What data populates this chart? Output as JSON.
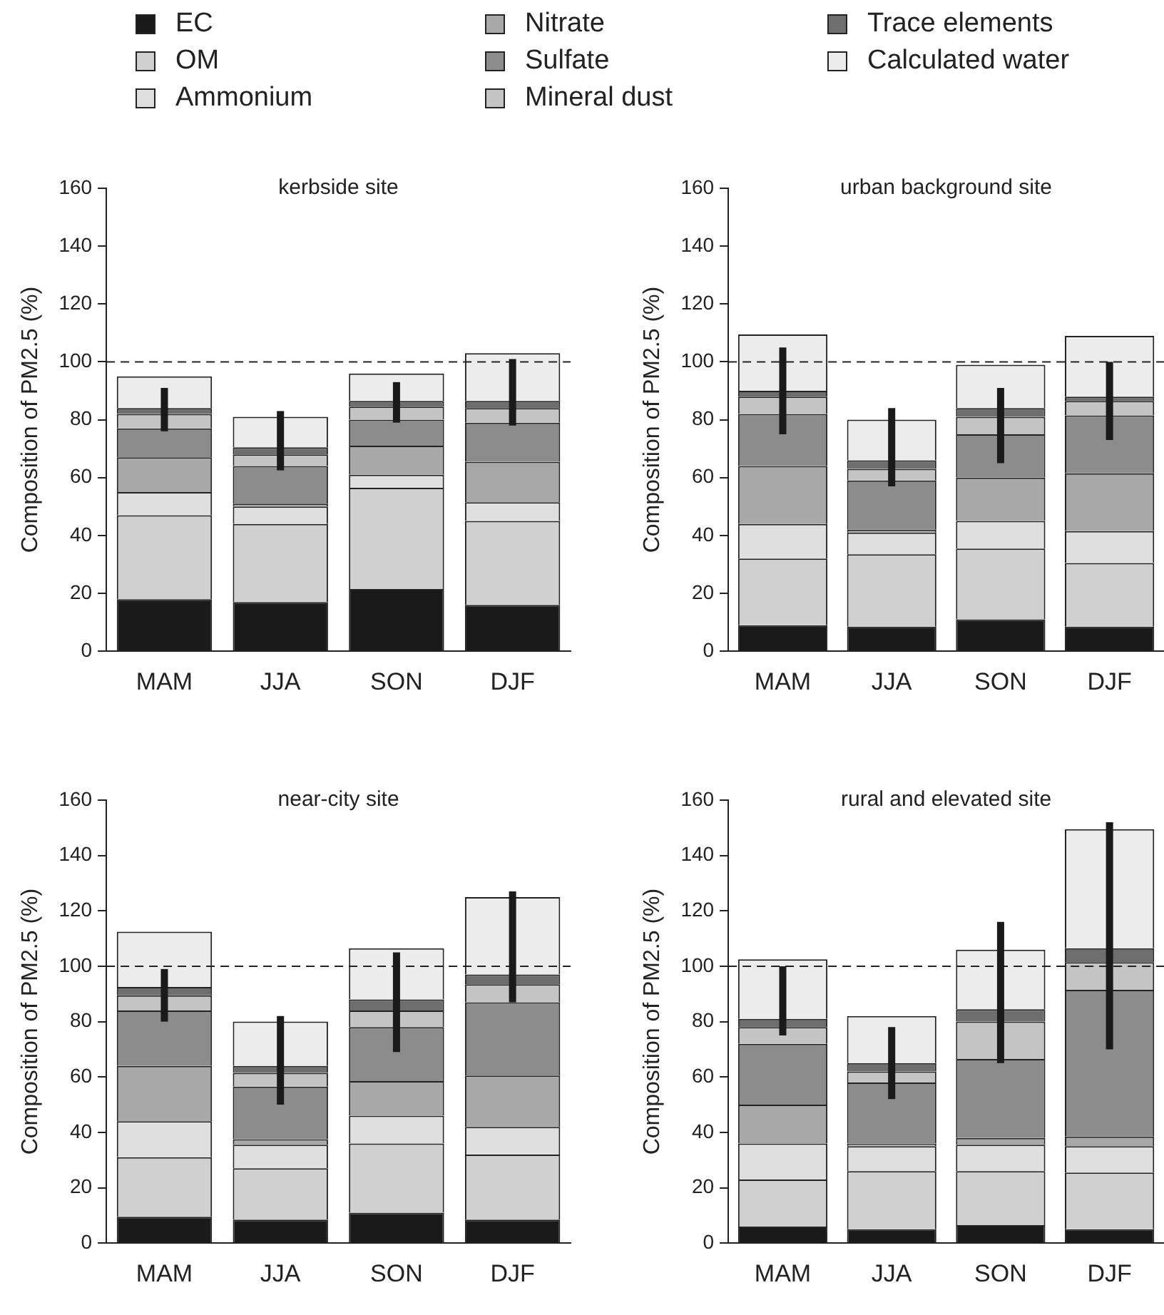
{
  "chart_data": [
    {
      "type": "bar",
      "stacked": true,
      "title": "kerbside site",
      "ylabel": "Composition of PM2.5 (%)",
      "categories": [
        "MAM",
        "JJA",
        "SON",
        "DJF"
      ],
      "ylim": [
        0,
        160
      ],
      "yticks": [
        0,
        20,
        40,
        60,
        80,
        100,
        120,
        140,
        160
      ],
      "legend": "top",
      "ref_lines": [
        {
          "axis": "y",
          "value": 100,
          "line_style": "dashed"
        }
      ],
      "series": [
        {
          "name": "EC",
          "color": "#1a1a1a",
          "values": [
            18,
            17,
            21.5,
            16
          ]
        },
        {
          "name": "OM",
          "color": "#d0d0d0",
          "values": [
            29,
            27,
            35,
            29
          ]
        },
        {
          "name": "Ammonium",
          "color": "#dfdfdf",
          "values": [
            8,
            6,
            4.5,
            6.5
          ]
        },
        {
          "name": "Nitrate",
          "color": "#a8a8a8",
          "values": [
            12,
            1,
            10,
            14
          ]
        },
        {
          "name": "Sulfate",
          "color": "#8c8c8c",
          "values": [
            10,
            13,
            9,
            13.5
          ]
        },
        {
          "name": "Mineral dust",
          "color": "#c4c4c4",
          "values": [
            5,
            4,
            4.5,
            5
          ]
        },
        {
          "name": "Trace elements",
          "color": "#6e6e6e",
          "values": [
            2,
            2.5,
            2,
            2.5
          ],
          "errors": [
            [
              76,
              91
            ],
            [
              62.5,
              83
            ],
            [
              79,
              93
            ],
            [
              78,
              101
            ]
          ]
        },
        {
          "name": "Calculated water",
          "color": "#ececec",
          "values": [
            11,
            10.5,
            9.5,
            16.5
          ]
        }
      ]
    },
    {
      "type": "bar",
      "stacked": true,
      "title": "urban background site",
      "ylabel": "Composition of PM2.5 (%)",
      "categories": [
        "MAM",
        "JJA",
        "SON",
        "DJF"
      ],
      "legend": "top",
      "ylim": [
        0,
        160
      ],
      "yticks": [
        0,
        20,
        40,
        60,
        80,
        100,
        120,
        140,
        160
      ],
      "ref_lines": [
        {
          "axis": "y",
          "value": 100,
          "line_style": "dashed"
        }
      ],
      "series": [
        {
          "name": "EC",
          "color": "#1a1a1a",
          "values": [
            9,
            8.5,
            11,
            8.5
          ]
        },
        {
          "name": "OM",
          "color": "#d0d0d0",
          "values": [
            23,
            25,
            24.5,
            22
          ]
        },
        {
          "name": "Ammonium",
          "color": "#dfdfdf",
          "values": [
            12,
            7.5,
            9.5,
            11
          ]
        },
        {
          "name": "Nitrate",
          "color": "#a8a8a8",
          "values": [
            20,
            1,
            15,
            20
          ]
        },
        {
          "name": "Sulfate",
          "color": "#8c8c8c",
          "values": [
            18,
            17,
            15,
            20
          ]
        },
        {
          "name": "Mineral dust",
          "color": "#c4c4c4",
          "values": [
            6,
            4,
            6,
            5
          ]
        },
        {
          "name": "Trace elements",
          "color": "#6e6e6e",
          "values": [
            2,
            3,
            3,
            1.5
          ],
          "errors": [
            [
              75,
              105
            ],
            [
              57,
              84
            ],
            [
              65,
              91
            ],
            [
              73,
              100
            ]
          ]
        },
        {
          "name": "Calculated water",
          "color": "#ececec",
          "values": [
            19.5,
            14,
            15,
            21
          ]
        }
      ]
    },
    {
      "type": "bar",
      "stacked": true,
      "title": "near-city site",
      "ylabel": "Composition of PM2.5 (%)",
      "categories": [
        "MAM",
        "JJA",
        "SON",
        "DJF"
      ],
      "legend": "top",
      "ylim": [
        0,
        160
      ],
      "yticks": [
        0,
        20,
        40,
        60,
        80,
        100,
        120,
        140,
        160
      ],
      "ref_lines": [
        {
          "axis": "y",
          "value": 100,
          "line_style": "dashed"
        }
      ],
      "series": [
        {
          "name": "EC",
          "color": "#1a1a1a",
          "values": [
            9.5,
            8.5,
            11,
            8.5
          ]
        },
        {
          "name": "OM",
          "color": "#d0d0d0",
          "values": [
            21.5,
            18.5,
            25,
            23.5
          ]
        },
        {
          "name": "Ammonium",
          "color": "#dfdfdf",
          "values": [
            13,
            8.5,
            10,
            10
          ]
        },
        {
          "name": "Nitrate",
          "color": "#a8a8a8",
          "values": [
            20,
            2,
            12.5,
            18.5
          ]
        },
        {
          "name": "Sulfate",
          "color": "#8c8c8c",
          "values": [
            20,
            19,
            19.5,
            26.5
          ]
        },
        {
          "name": "Mineral dust",
          "color": "#c4c4c4",
          "values": [
            5.5,
            5,
            6,
            6.5
          ]
        },
        {
          "name": "Trace elements",
          "color": "#6e6e6e",
          "values": [
            3,
            2.5,
            4,
            3.5
          ],
          "errors": [
            [
              80,
              99
            ],
            [
              50,
              82
            ],
            [
              69,
              105
            ],
            [
              87,
              127
            ]
          ]
        },
        {
          "name": "Calculated water",
          "color": "#ececec",
          "values": [
            20,
            16,
            18.5,
            28
          ]
        }
      ]
    },
    {
      "type": "bar",
      "stacked": true,
      "title": "rural and elevated site",
      "ylabel": "Composition of PM2.5 (%)",
      "categories": [
        "MAM",
        "JJA",
        "SON",
        "DJF"
      ],
      "legend": "top",
      "ylim": [
        0,
        160
      ],
      "yticks": [
        0,
        20,
        40,
        60,
        80,
        100,
        120,
        140,
        160
      ],
      "ref_lines": [
        {
          "axis": "y",
          "value": 100,
          "line_style": "dashed"
        }
      ],
      "series": [
        {
          "name": "EC",
          "color": "#1a1a1a",
          "values": [
            6,
            5,
            6.5,
            5
          ]
        },
        {
          "name": "OM",
          "color": "#d0d0d0",
          "values": [
            17,
            21,
            19.5,
            20.5
          ]
        },
        {
          "name": "Ammonium",
          "color": "#dfdfdf",
          "values": [
            13,
            9,
            9.5,
            9.5
          ]
        },
        {
          "name": "Nitrate",
          "color": "#a8a8a8",
          "values": [
            14,
            1,
            2.5,
            3.5
          ]
        },
        {
          "name": "Sulfate",
          "color": "#8c8c8c",
          "values": [
            22,
            22,
            28.5,
            53
          ]
        },
        {
          "name": "Mineral dust",
          "color": "#c4c4c4",
          "values": [
            6,
            4,
            13.5,
            10
          ]
        },
        {
          "name": "Trace elements",
          "color": "#6e6e6e",
          "values": [
            3,
            3,
            4.5,
            5
          ],
          "errors": [
            [
              75,
              100
            ],
            [
              52,
              78
            ],
            [
              65,
              116
            ],
            [
              70,
              152
            ]
          ]
        },
        {
          "name": "Calculated water",
          "color": "#ececec",
          "values": [
            21.5,
            17,
            21.5,
            43
          ]
        }
      ]
    }
  ]
}
